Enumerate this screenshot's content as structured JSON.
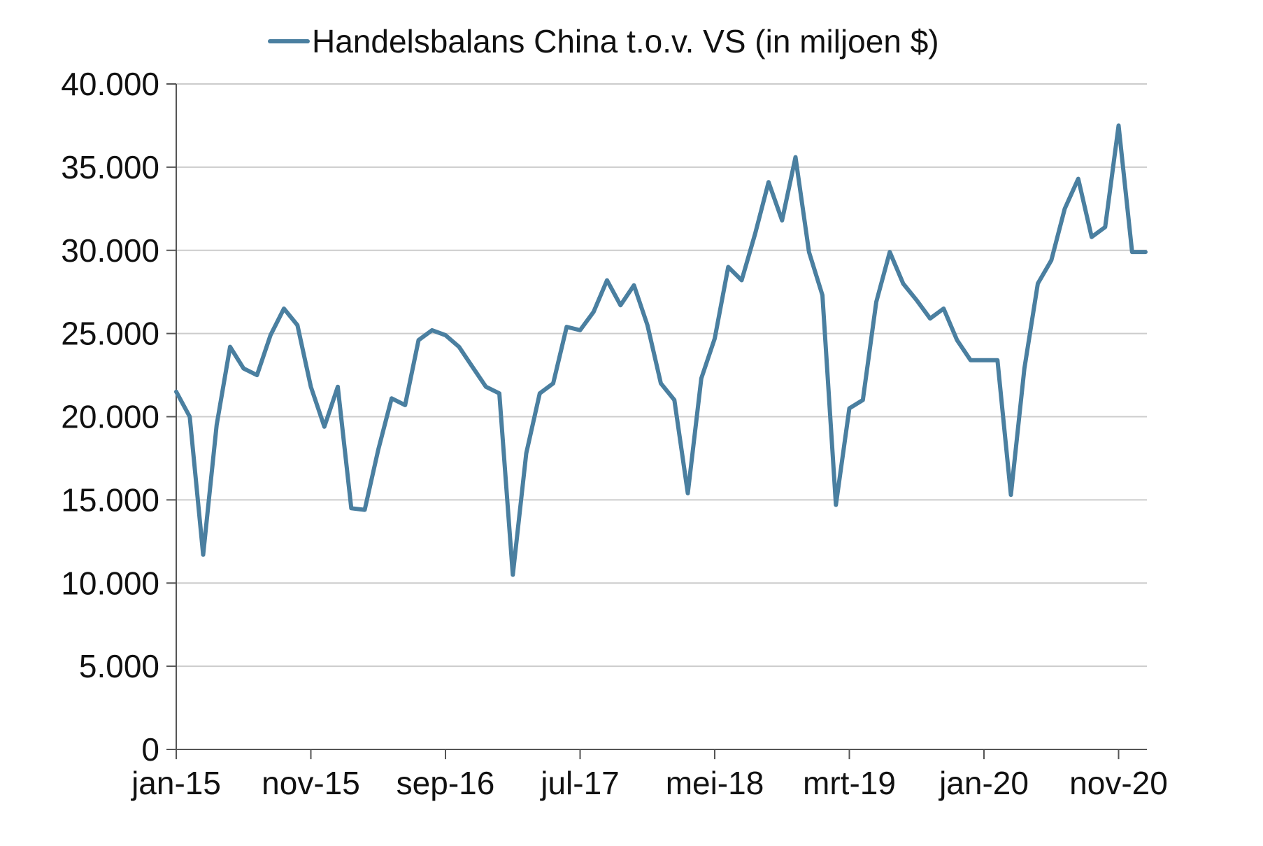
{
  "chart_data": {
    "type": "line",
    "legend": {
      "position": "top",
      "label": "Handelsbalans China t.o.v. VS (in miljoen $)"
    },
    "grid": "horizontal",
    "ylim": [
      0,
      40000
    ],
    "yticks": [
      0,
      5000,
      10000,
      15000,
      20000,
      25000,
      30000,
      35000,
      40000
    ],
    "ytick_labels": [
      "0",
      "5.000",
      "10.000",
      "15.000",
      "20.000",
      "25.000",
      "30.000",
      "35.000",
      "40.000"
    ],
    "xtick_labels": [
      "jan-15",
      "nov-15",
      "sep-16",
      "jul-17",
      "mei-18",
      "mrt-19",
      "jan-20",
      "nov-20"
    ],
    "xtick_every": 10,
    "series": [
      {
        "name": "Handelsbalans China t.o.v. VS (in miljoen $)",
        "color": "#4a7fa0",
        "start": "jan-15",
        "values": [
          21500,
          20000,
          11700,
          19500,
          24200,
          22900,
          22500,
          24900,
          26500,
          25500,
          21800,
          19400,
          21800,
          14500,
          14400,
          18000,
          21100,
          20700,
          24600,
          25200,
          24900,
          24200,
          23000,
          21800,
          21400,
          10500,
          17800,
          21400,
          22000,
          25400,
          25200,
          26300,
          28200,
          26700,
          27900,
          25500,
          22000,
          21000,
          15400,
          22300,
          24700,
          29000,
          28200,
          31000,
          34100,
          31800,
          35600,
          29900,
          27300,
          14700,
          20500,
          21000,
          26900,
          29900,
          28000,
          27000,
          25900,
          26500,
          24600,
          23400,
          23400,
          23400,
          15300,
          22900,
          28000,
          29400,
          32500,
          34300,
          30800,
          31400,
          37500,
          29900,
          29900
        ]
      }
    ]
  }
}
